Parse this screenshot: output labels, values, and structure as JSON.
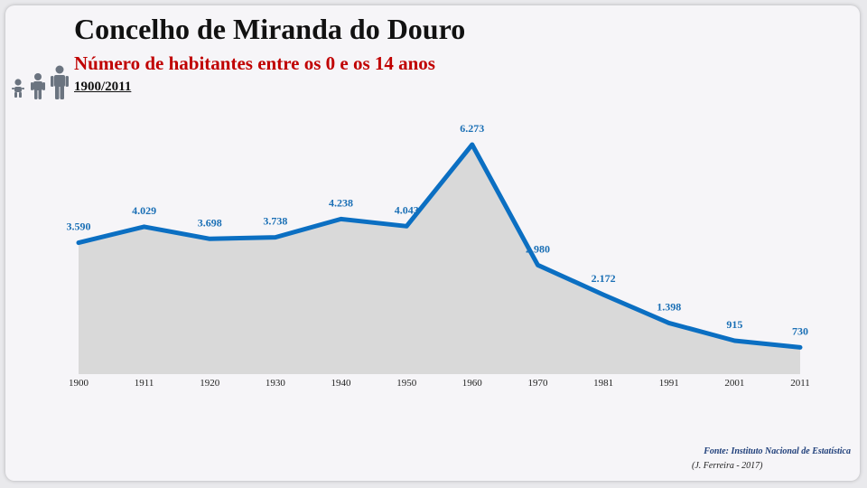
{
  "header": {
    "title": "Concelho de Miranda do Douro",
    "subtitle": "Número de habitantes entre os 0 e os 14 anos",
    "period": "1900/2011"
  },
  "icons": [
    "baby-icon",
    "child-icon",
    "adult-icon"
  ],
  "colors": {
    "line": "#0b6fc2",
    "area": "#d9d9d9",
    "subtitle": "#c00000",
    "label": "#1a6fb5"
  },
  "chart_data": {
    "type": "area",
    "x": [
      "1900",
      "1911",
      "1920",
      "1930",
      "1940",
      "1950",
      "1960",
      "1970",
      "1981",
      "1991",
      "2001",
      "2011"
    ],
    "values": [
      3590,
      4029,
      3698,
      3738,
      4238,
      4043,
      6273,
      2980,
      2172,
      1398,
      915,
      730
    ],
    "data_labels": [
      "3.590",
      "4.029",
      "3.698",
      "3.738",
      "4.238",
      "4.043",
      "6.273",
      "2.980",
      "2.172",
      "1.398",
      "915",
      "730"
    ],
    "ylim": [
      0,
      6273
    ],
    "grid": false,
    "legend": "none"
  },
  "footer": {
    "source": "Fonte: Instituto Nacional de Estatística",
    "credit": "(J. Ferreira - 2017)"
  }
}
